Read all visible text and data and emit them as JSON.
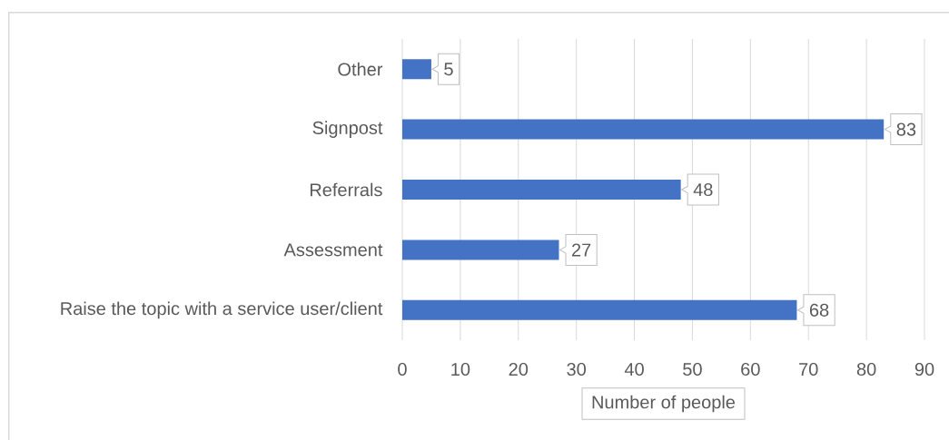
{
  "chart_data": {
    "type": "bar",
    "orientation": "horizontal",
    "categories": [
      "Other",
      "Signpost",
      "Referrals",
      "Assessment",
      "Raise the topic with a service user/client"
    ],
    "values": [
      5,
      83,
      48,
      27,
      68
    ],
    "color": "#4472c4",
    "xlabel": "Number of people",
    "xlim": [
      0,
      90
    ],
    "xticks": [
      0,
      10,
      20,
      30,
      40,
      50,
      60,
      70,
      80,
      90
    ],
    "grid": "x",
    "data_labels": true
  }
}
